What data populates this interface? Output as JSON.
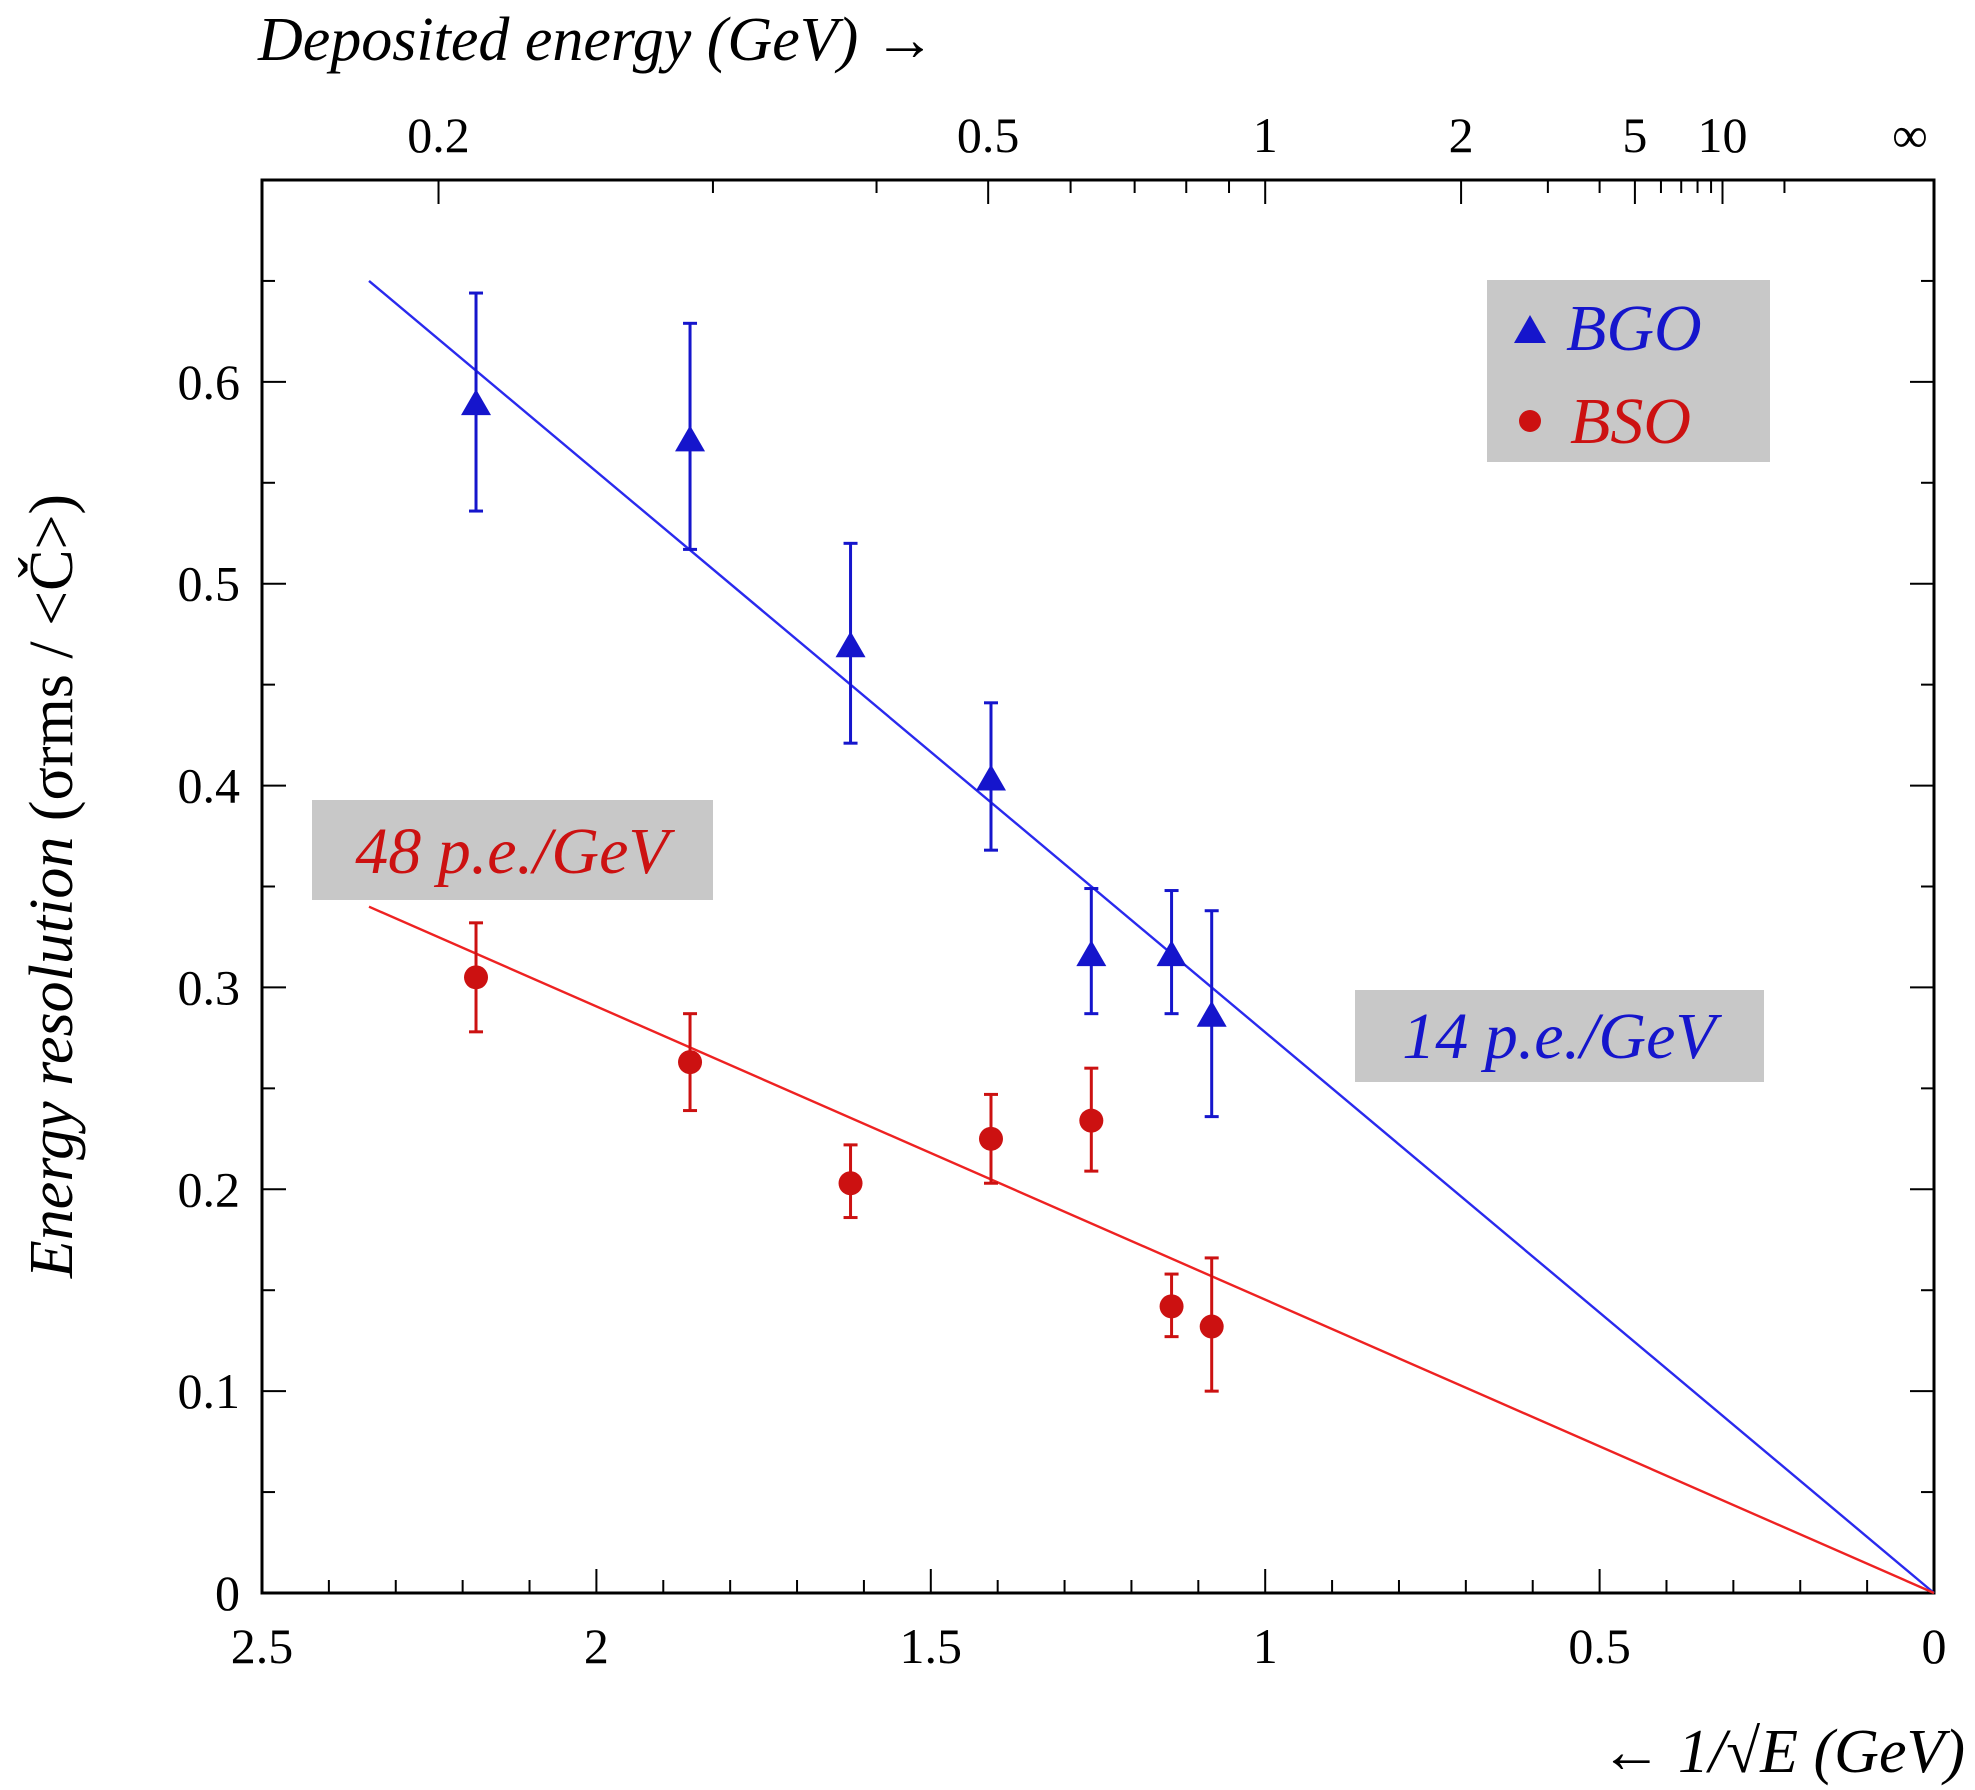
{
  "chart_data": {
    "type": "scatter",
    "title": "",
    "x_axis": {
      "label": "1/√E (GeV)",
      "ticks": [
        "0",
        "0.5",
        "1",
        "1.5",
        "2",
        "2.5"
      ],
      "range": [
        0,
        2.5
      ],
      "reversed": true
    },
    "x2_axis": {
      "label": "Deposited energy (GeV)",
      "arrow": "→",
      "ticks": [
        {
          "label": "0.2",
          "energy": 0.2
        },
        {
          "label": "0.5",
          "energy": 0.5
        },
        {
          "label": "1",
          "energy": 1
        },
        {
          "label": "2",
          "energy": 2
        },
        {
          "label": "5",
          "energy": 5
        },
        {
          "label": "10",
          "energy": 10
        },
        {
          "label": "∞",
          "energy": "infinity"
        }
      ]
    },
    "x_arrow": "←",
    "y_axis": {
      "label_main": "Energy resolution",
      "label_formula": "(σrms / <Č>)",
      "ticks": [
        "0",
        "0.1",
        "0.2",
        "0.3",
        "0.4",
        "0.5",
        "0.6"
      ],
      "range": [
        0,
        0.7
      ]
    },
    "grid": false,
    "legend": {
      "position": "top-right",
      "entries": [
        {
          "name": "BGO",
          "color": "#1515cc",
          "marker": "triangle"
        },
        {
          "name": "BSO",
          "color": "#cc1111",
          "marker": "circle"
        }
      ]
    },
    "series": [
      {
        "name": "BGO",
        "color": "#1515cc",
        "marker": "triangle",
        "points": [
          {
            "x": 2.18,
            "y": 0.588,
            "err_lo": 0.536,
            "err_hi": 0.644
          },
          {
            "x": 1.86,
            "y": 0.57,
            "err_lo": 0.517,
            "err_hi": 0.629
          },
          {
            "x": 1.62,
            "y": 0.468,
            "err_lo": 0.421,
            "err_hi": 0.52
          },
          {
            "x": 1.41,
            "y": 0.402,
            "err_lo": 0.368,
            "err_hi": 0.441
          },
          {
            "x": 1.26,
            "y": 0.315,
            "err_lo": 0.287,
            "err_hi": 0.349
          },
          {
            "x": 1.14,
            "y": 0.315,
            "err_lo": 0.287,
            "err_hi": 0.348
          },
          {
            "x": 1.08,
            "y": 0.285,
            "err_lo": 0.236,
            "err_hi": 0.338
          }
        ],
        "fit": {
          "x": [
            2.34,
            0
          ],
          "y": [
            0.65,
            0
          ]
        }
      },
      {
        "name": "BSO",
        "color": "#cc1111",
        "marker": "circle",
        "points": [
          {
            "x": 2.18,
            "y": 0.305,
            "err_lo": 0.278,
            "err_hi": 0.332
          },
          {
            "x": 1.86,
            "y": 0.263,
            "err_lo": 0.239,
            "err_hi": 0.287
          },
          {
            "x": 1.62,
            "y": 0.203,
            "err_lo": 0.186,
            "err_hi": 0.222
          },
          {
            "x": 1.41,
            "y": 0.225,
            "err_lo": 0.203,
            "err_hi": 0.247
          },
          {
            "x": 1.26,
            "y": 0.234,
            "err_lo": 0.209,
            "err_hi": 0.26
          },
          {
            "x": 1.14,
            "y": 0.142,
            "err_lo": 0.127,
            "err_hi": 0.158
          },
          {
            "x": 1.08,
            "y": 0.132,
            "err_lo": 0.1,
            "err_hi": 0.166
          }
        ],
        "fit": {
          "x": [
            2.34,
            0
          ],
          "y": [
            0.34,
            0
          ]
        }
      }
    ],
    "annotations": [
      {
        "text": "48 p.e./GeV",
        "color": "#cc1111",
        "near": "BSO fit, upper left"
      },
      {
        "text": "14 p.e./GeV",
        "color": "#1515cc",
        "near": "BGO fit, right"
      }
    ]
  }
}
